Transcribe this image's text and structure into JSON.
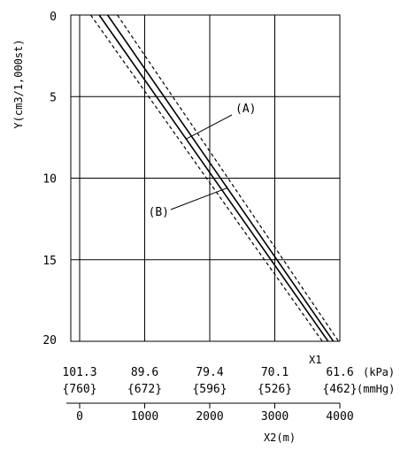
{
  "chart_data": {
    "type": "line",
    "ylabel": "Y(cm3/1,000st)",
    "y_ticks": [
      "0",
      "5",
      "10",
      "15",
      "20"
    ],
    "ylim": [
      0,
      20
    ],
    "y_inverted": true,
    "x2label": "X2(m)",
    "x2_ticks": [
      "0",
      "1000",
      "2000",
      "3000",
      "4000"
    ],
    "xlim": [
      0,
      4000
    ],
    "x1label": "X1",
    "x1_kpa_ticks": [
      "101.3",
      "89.6",
      "79.4",
      "70.1",
      "61.6"
    ],
    "x1_kpa_unit": "(kPa)",
    "x1_mmhg_ticks": [
      "{760}",
      "{672}",
      "{596}",
      "{526}",
      "{462}"
    ],
    "x1_mmhg_unit": "(mmHg)",
    "annotations": [
      {
        "text": "(A)",
        "target_series": 1
      },
      {
        "text": "(B)",
        "target_series": 2
      }
    ],
    "series": [
      {
        "style": "dashed",
        "x": [
          170,
          3730
        ],
        "y": [
          0,
          20
        ]
      },
      {
        "style": "solid",
        "x": [
          300,
          3820
        ],
        "y": [
          0,
          20
        ]
      },
      {
        "style": "solid",
        "x": [
          430,
          3900
        ],
        "y": [
          0,
          20
        ]
      },
      {
        "style": "dashed",
        "x": [
          580,
          3980
        ],
        "y": [
          0,
          20
        ]
      }
    ],
    "grid": true,
    "legend": "none"
  }
}
